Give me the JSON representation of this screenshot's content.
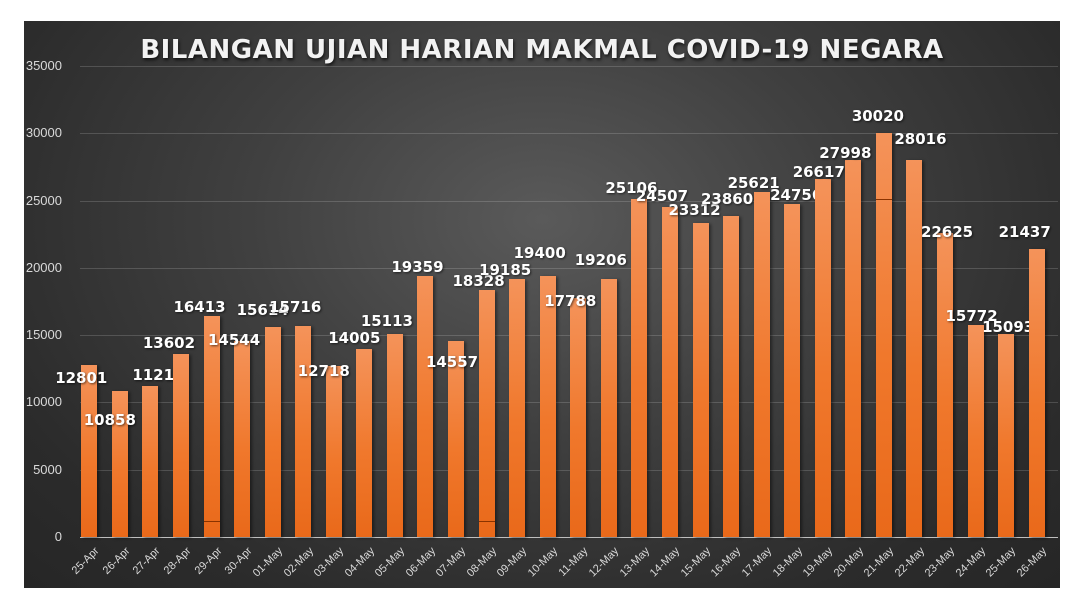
{
  "chart_data": {
    "type": "bar",
    "title": "BILANGAN UJIAN HARIAN MAKMAL COVID-19 NEGARA",
    "xlabel": "",
    "ylabel": "",
    "ylim": [
      0,
      35000
    ],
    "yticks": [
      "0",
      "5000",
      "10000",
      "15000",
      "20000",
      "25000",
      "30000",
      "35000"
    ],
    "grid": true,
    "legend": null,
    "categories": [
      "25-Apr",
      "26-Apr",
      "27-Apr",
      "28-Apr",
      "29-Apr",
      "30-Apr",
      "01-May",
      "02-May",
      "03-May",
      "04-May",
      "05-May",
      "06-May",
      "07-May",
      "08-May",
      "09-May",
      "10-May",
      "11-May",
      "12-May",
      "13-May",
      "14-May",
      "15-May",
      "16-May",
      "17-May",
      "18-May",
      "19-May",
      "20-May",
      "21-May",
      "22-May",
      "23-May",
      "24-May",
      "25-May",
      "26-May"
    ],
    "values": [
      12801,
      10858,
      11217,
      13602,
      16413,
      14544,
      15614,
      15716,
      12718,
      14005,
      15113,
      19359,
      14557,
      18328,
      19185,
      19400,
      17788,
      19206,
      25106,
      24507,
      23312,
      23860,
      25621,
      24756,
      26617,
      27998,
      30020,
      28016,
      22625,
      15772,
      15093,
      21437
    ],
    "bar_color": "#f0782c",
    "background_color": "#333333"
  }
}
